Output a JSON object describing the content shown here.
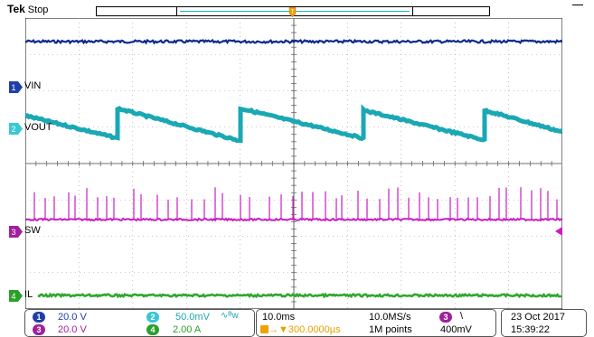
{
  "header": {
    "brand": "Tek",
    "state": "Stop"
  },
  "channels": [
    {
      "num": "1",
      "label": "VIN",
      "scale": "20.0 V",
      "color": "#1f3fa8",
      "trace_color": "#0a2a8c"
    },
    {
      "num": "2",
      "label": "VOUT",
      "scale": "50.0mV",
      "color": "#38c8d4",
      "trace_color": "#1aa8b4",
      "coupling_symbol": "∿ᴮw"
    },
    {
      "num": "3",
      "label": "SW",
      "scale": "20.0 V",
      "color": "#a0209c",
      "trace_color": "#c81cc4"
    },
    {
      "num": "4",
      "label": "IL",
      "scale": "2.00 A",
      "color": "#2aa02a",
      "trace_color": "#2ea82e"
    }
  ],
  "timebase": {
    "scale": "10.0ms",
    "trigger_position": "300.0000µs",
    "sample_rate": "10.0MS/s",
    "record_length": "1M points"
  },
  "trigger": {
    "source": "3",
    "slope_symbol": "\\",
    "level": "400mV"
  },
  "clock": {
    "date": "23 Oct  2017",
    "time": "15:39:22"
  },
  "markers": {
    "trigger_marker": "T"
  }
}
